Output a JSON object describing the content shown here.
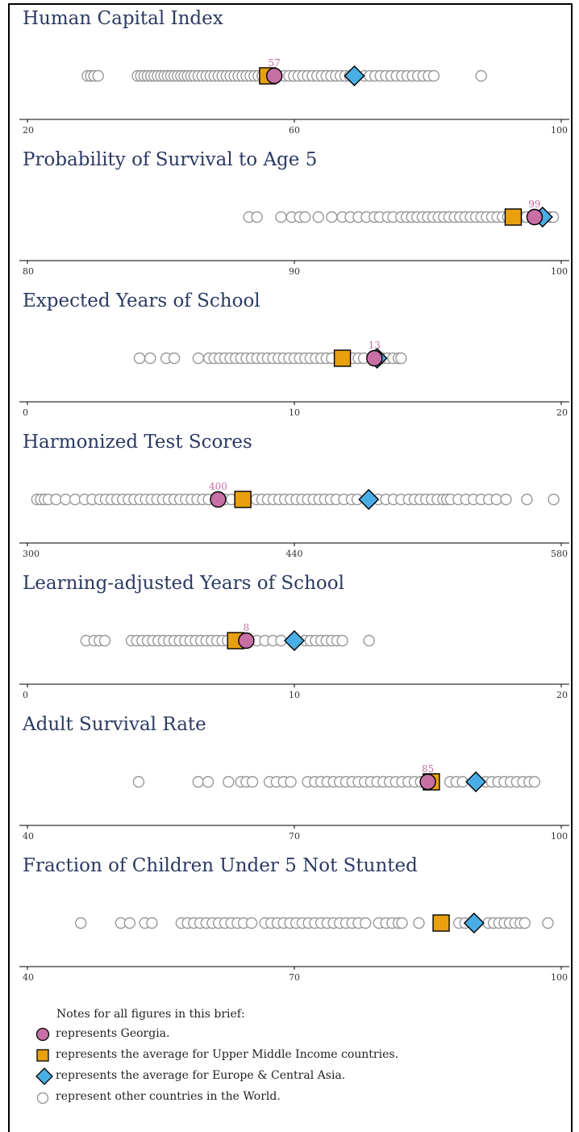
{
  "colors": {
    "title": "#2b3a62",
    "georgia": "#c86fa5",
    "umic": "#e8a00f",
    "eca": "#4aaee6",
    "other": "#999999",
    "label": "#c86fa5"
  },
  "chart_data": [
    {
      "type": "scatter",
      "title": "Human Capital Index",
      "xlim": [
        20,
        100
      ],
      "ticks": [
        "20",
        "60",
        "100"
      ],
      "tick_values": [
        20,
        60,
        100
      ],
      "georgia": 57,
      "georgia_label": "57",
      "umic": 56,
      "eca": 69,
      "others": [
        29,
        29.5,
        30,
        30.6,
        36.5,
        37,
        37.5,
        38,
        38.5,
        39,
        39.5,
        40,
        40.5,
        41,
        41.5,
        42,
        42.5,
        43,
        43.5,
        44,
        44.5,
        45,
        45.6,
        46.2,
        46.8,
        47.4,
        48,
        48.6,
        49.2,
        49.8,
        50.4,
        51,
        51.6,
        52.2,
        52.8,
        53.4,
        54,
        54.6,
        55.2,
        55.8,
        58.5,
        59.2,
        59.9,
        60.6,
        61.3,
        62,
        62.7,
        63.4,
        64.1,
        64.8,
        65.5,
        66.2,
        66.9,
        67.6,
        68.3,
        70.5,
        71.3,
        72.1,
        72.9,
        73.7,
        74.5,
        75.3,
        76.1,
        76.9,
        77.7,
        78.5,
        79.3,
        80.1,
        80.9,
        88
      ]
    },
    {
      "type": "scatter",
      "title": "Probability of Survival to Age 5",
      "xlim": [
        80,
        100
      ],
      "ticks": [
        "80",
        "90",
        "100"
      ],
      "tick_values": [
        80,
        90,
        100
      ],
      "georgia": 99,
      "georgia_label": "99",
      "umic": 98.2,
      "eca": 99.3,
      "others": [
        88.3,
        88.6,
        89.5,
        89.9,
        90.2,
        90.4,
        90.9,
        91.4,
        91.8,
        92.1,
        92.4,
        92.7,
        93,
        93.2,
        93.5,
        93.7,
        94,
        94.2,
        94.4,
        94.6,
        94.8,
        95,
        95.2,
        95.4,
        95.6,
        95.8,
        96,
        96.2,
        96.4,
        96.6,
        96.8,
        97,
        97.2,
        97.4,
        97.6,
        97.8,
        98,
        98.5,
        98.7,
        99.1,
        99.4,
        99.6,
        99.7
      ]
    },
    {
      "type": "scatter",
      "title": "Expected Years of School",
      "xlim": [
        0,
        20
      ],
      "ticks": [
        "0",
        "10",
        "20"
      ],
      "tick_values": [
        0,
        10,
        20
      ],
      "georgia": 13,
      "georgia_label": "13",
      "umic": 11.8,
      "eca": 13.1,
      "others": [
        4.2,
        4.6,
        5.2,
        5.5,
        6.4,
        6.8,
        7,
        7.2,
        7.4,
        7.6,
        7.8,
        8,
        8.2,
        8.4,
        8.6,
        8.8,
        9,
        9.2,
        9.4,
        9.6,
        9.8,
        10,
        10.2,
        10.4,
        10.6,
        10.8,
        11,
        11.2,
        11.4,
        12.2,
        12.4,
        12.6,
        13.3,
        13.5,
        13.7,
        13.9,
        14
      ]
    },
    {
      "type": "scatter",
      "title": "Harmonized Test Scores",
      "xlim": [
        300,
        580
      ],
      "ticks": [
        "300",
        "440",
        "580"
      ],
      "tick_values": [
        300,
        440,
        580
      ],
      "georgia": 400,
      "georgia_label": "400",
      "umic": 413,
      "eca": 479,
      "others": [
        305,
        307,
        309,
        311,
        315,
        320,
        325,
        330,
        334,
        338,
        341,
        344,
        347,
        350,
        353,
        356,
        359,
        362,
        365,
        368,
        371,
        374,
        377,
        380,
        383,
        386,
        389,
        392,
        395,
        404,
        407,
        420,
        423,
        426,
        429,
        432,
        435,
        438,
        441,
        444,
        447,
        450,
        453,
        456,
        459,
        462,
        466,
        470,
        473,
        484,
        488,
        492,
        496,
        500,
        503,
        506,
        509,
        512,
        515,
        518,
        520,
        522,
        526,
        530,
        534,
        538,
        542,
        546,
        551,
        562,
        576
      ]
    },
    {
      "type": "scatter",
      "title": "Learning-adjusted Years of School",
      "xlim": [
        0,
        20
      ],
      "ticks": [
        "0",
        "10",
        "20"
      ],
      "tick_values": [
        0,
        10,
        20
      ],
      "georgia": 8.2,
      "georgia_label": "8",
      "umic": 7.8,
      "eca": 10,
      "others": [
        2.2,
        2.5,
        2.7,
        2.9,
        3.9,
        4.1,
        4.3,
        4.5,
        4.7,
        4.9,
        5.1,
        5.3,
        5.5,
        5.7,
        5.9,
        6.1,
        6.3,
        6.5,
        6.7,
        6.9,
        7.1,
        7.3,
        7.5,
        8.6,
        8.9,
        9.2,
        9.5,
        10.4,
        10.6,
        10.8,
        11,
        11.2,
        11.4,
        11.6,
        11.8,
        12.8
      ]
    },
    {
      "type": "scatter",
      "title": "Adult Survival Rate",
      "xlim": [
        40,
        100
      ],
      "ticks": [
        "40",
        "70",
        "100"
      ],
      "tick_values": [
        40,
        70,
        100
      ],
      "georgia": 85,
      "georgia_label": "85",
      "umic": 85.4,
      "eca": 90.4,
      "others": [
        52.5,
        59.2,
        60.3,
        62.6,
        64,
        64.6,
        65.3,
        67.2,
        68,
        68.8,
        69.6,
        71.5,
        72.3,
        73,
        73.7,
        74.4,
        75.1,
        75.8,
        76.5,
        77.2,
        77.9,
        78.6,
        79.3,
        80,
        80.7,
        81.4,
        82.1,
        82.8,
        83.5,
        84.2,
        87.5,
        88.2,
        88.9,
        91.5,
        92.2,
        92.9,
        93.6,
        94.3,
        95,
        95.7,
        96.4,
        97
      ]
    },
    {
      "type": "scatter",
      "title": "Fraction of Children Under 5 Not Stunted",
      "xlim": [
        40,
        100
      ],
      "ticks": [
        "40",
        "70",
        "100"
      ],
      "tick_values": [
        40,
        70,
        100
      ],
      "georgia": null,
      "georgia_label": "",
      "umic": 86.5,
      "eca": 90.2,
      "others": [
        46,
        50.5,
        51.5,
        53.2,
        54,
        57.3,
        58,
        58.7,
        59.4,
        60.1,
        60.8,
        61.5,
        62.2,
        62.9,
        63.6,
        64.3,
        65.2,
        66.7,
        67.4,
        68.1,
        68.8,
        69.5,
        70.2,
        70.9,
        71.6,
        72.3,
        73,
        73.7,
        74.4,
        75.1,
        75.8,
        76.5,
        77.2,
        78,
        79.5,
        80.3,
        81,
        81.7,
        82.1,
        84,
        88.5,
        89.2,
        91.8,
        92.4,
        93,
        93.6,
        94.2,
        94.8,
        95.4,
        95.9,
        98.5
      ]
    }
  ],
  "legend": {
    "title": "Notes for all figures in this brief:",
    "georgia": "represents Georgia.",
    "umic": "represents the average for Upper Middle Income countries.",
    "eca": "represents the average for Europe & Central Asia.",
    "other": "represent other countries in the World."
  }
}
